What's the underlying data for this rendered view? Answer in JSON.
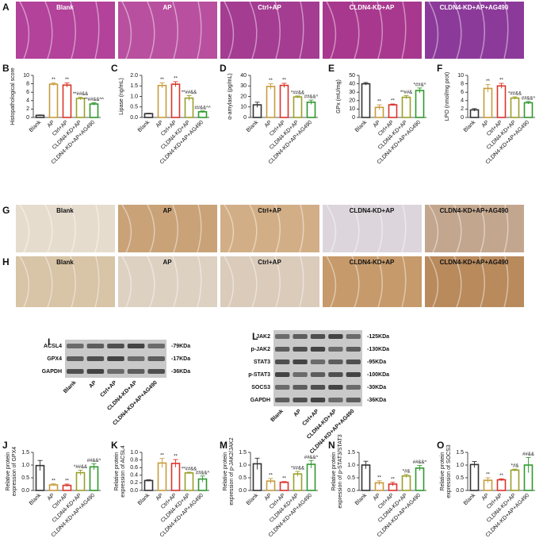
{
  "figure_A": {
    "panel": "A",
    "labels": [
      "Blank",
      "AP",
      "Ctrl+AP",
      "CLDN4-KD+AP",
      "CLDN4-KD+AP+AG490"
    ]
  },
  "figure_G": {
    "panel": "G",
    "labels": [
      "Blank",
      "AP",
      "Ctrl+AP",
      "CLDN4-KD+AP",
      "CLDN4-KD+AP+AG490"
    ]
  },
  "figure_H": {
    "panel": "H",
    "labels": [
      "Blank",
      "AP",
      "Ctrl+AP",
      "CLDN4-KD+AP",
      "CLDN4-KD+AP+AG490"
    ]
  },
  "blot_I": {
    "panel": "I",
    "proteins": [
      "ACSL4",
      "GPX4",
      "GAPDH"
    ],
    "sizes": [
      "-79KDa",
      "-17KDa",
      "-36KDa"
    ],
    "lanes": [
      "Blank",
      "AP",
      "Ctrl+AP",
      "CLDN4-KD+AP",
      "CLDN4-KD+AP+AG490"
    ]
  },
  "blot_L": {
    "panel": "L",
    "proteins": [
      "JAK2",
      "p-JAK2",
      "STAT3",
      "p-STAT3",
      "SOCS3",
      "GAPDH"
    ],
    "sizes": [
      "-125KDa",
      "-130KDa",
      "-95KDa",
      "-100KDa",
      "-30KDa",
      "-36KDa"
    ],
    "lanes": [
      "Blank",
      "AP",
      "Ctrl+AP",
      "CLDN4-KD+AP",
      "CLDN4-KD+AP+AG490"
    ]
  },
  "chart_data": [
    {
      "type": "bar",
      "panel": "B",
      "ylabel": "Histopathological score",
      "categories": [
        "Blank",
        "AP",
        "Ctrl+AP",
        "CLDN4-KD+AP",
        "CLDN4-KD+AP+AG490"
      ],
      "values": [
        0.5,
        7.9,
        7.7,
        4.5,
        3.2
      ],
      "errors": [
        0.1,
        0.3,
        0.5,
        0.3,
        0.3
      ],
      "annotations": [
        null,
        "**",
        "**",
        "**##&&",
        "**##&&^^"
      ],
      "colors": [
        "#333333",
        "#c89b3c",
        "#d9342b",
        "#9aa02a",
        "#2e9a2e"
      ],
      "ylim": [
        0,
        10
      ],
      "yticks": [
        0,
        2,
        4,
        6,
        8,
        10
      ]
    },
    {
      "type": "bar",
      "panel": "C",
      "ylabel": "Lipase (ng/mL)",
      "categories": [
        "Blank",
        "AP",
        "Ctrl+AP",
        "CLDN4-KD+AP",
        "CLDN4-KD+AP+AG490"
      ],
      "values": [
        0.18,
        1.52,
        1.58,
        0.92,
        0.27
      ],
      "errors": [
        0.02,
        0.12,
        0.12,
        0.12,
        0.04
      ],
      "annotations": [
        null,
        "**",
        "**",
        "**##&&",
        "##&&^^"
      ],
      "colors": [
        "#333333",
        "#c89b3c",
        "#d9342b",
        "#9aa02a",
        "#2e9a2e"
      ],
      "ylim": [
        0,
        2
      ],
      "yticks": [
        {
          "value": 0,
          "label": "0.0"
        },
        0.5,
        {
          "value": 1,
          "label": "1.0"
        },
        1.5,
        {
          "value": 2,
          "label": "2.0"
        }
      ]
    },
    {
      "type": "bar",
      "panel": "D",
      "ylabel": "α-amylase (pg/mL)",
      "categories": [
        "Blank",
        "AP",
        "Ctrl+AP",
        "CLDN4-KD+AP",
        "CLDN4-KD+AP+AG490"
      ],
      "values": [
        12,
        29.5,
        30.5,
        19.5,
        14.5
      ],
      "errors": [
        2.5,
        2.5,
        2,
        1,
        2
      ],
      "annotations": [
        null,
        "**",
        "**",
        "*##&&",
        "##&&^"
      ],
      "colors": [
        "#333333",
        "#c89b3c",
        "#d9342b",
        "#9aa02a",
        "#2e9a2e"
      ],
      "ylim": [
        0,
        40
      ],
      "yticks": [
        0,
        10,
        20,
        30,
        40
      ]
    },
    {
      "type": "bar",
      "panel": "E",
      "ylabel": "GPx (mU/mg)",
      "categories": [
        "Blank",
        "AP",
        "Ctrl+AP",
        "CLDN4-KD+AP",
        "CLDN4-KD+AP+AG490"
      ],
      "values": [
        40,
        12,
        15,
        24,
        32
      ],
      "errors": [
        1.5,
        3,
        1,
        2,
        3
      ],
      "annotations": [
        null,
        "**",
        "**",
        "**##&",
        "*##&^"
      ],
      "colors": [
        "#333333",
        "#c89b3c",
        "#d9342b",
        "#9aa02a",
        "#2e9a2e"
      ],
      "ylim": [
        0,
        50
      ],
      "yticks": [
        0,
        10,
        20,
        30,
        40,
        50
      ]
    },
    {
      "type": "bar",
      "panel": "F",
      "ylabel": "LPO (nmol/mg prot)",
      "categories": [
        "Blank",
        "AP",
        "Ctrl+AP",
        "CLDN4-KD+AP",
        "CLDN4-KD+AP+AG490"
      ],
      "values": [
        1.8,
        6.9,
        7.5,
        4.6,
        3.5
      ],
      "errors": [
        0.3,
        0.9,
        0.6,
        0.3,
        0.3
      ],
      "annotations": [
        null,
        "**",
        "**",
        "*##&&",
        "##&&^"
      ],
      "colors": [
        "#333333",
        "#c89b3c",
        "#d9342b",
        "#9aa02a",
        "#2e9a2e"
      ],
      "ylim": [
        0,
        10
      ],
      "yticks": [
        0,
        2,
        4,
        6,
        8,
        10
      ]
    },
    {
      "type": "bar",
      "panel": "J",
      "ylabel": [
        "Relative protein",
        "expression of GPX4"
      ],
      "categories": [
        "Blank",
        "AP",
        "Ctrl+AP",
        "CLDN4-KD+AP",
        "CLDN4-KD+AP+AG490"
      ],
      "values": [
        0.98,
        0.22,
        0.2,
        0.7,
        0.93
      ],
      "errors": [
        0.2,
        0.04,
        0.05,
        0.1,
        0.12
      ],
      "annotations": [
        null,
        "**",
        "**",
        "*##&&",
        "##&&^"
      ],
      "colors": [
        "#333333",
        "#c89b3c",
        "#d9342b",
        "#9aa02a",
        "#2e9a2e"
      ],
      "ylim": [
        0,
        1.5
      ],
      "yticks": [
        {
          "value": 0,
          "label": "0.0"
        },
        0.5,
        {
          "value": 1,
          "label": "1.0"
        },
        1.5
      ]
    },
    {
      "type": "bar",
      "panel": "K",
      "ylabel": [
        "Relative protein",
        "expression of ACSL4"
      ],
      "categories": [
        "Blank",
        "AP",
        "Ctrl+AP",
        "CLDN4-KD+AP",
        "CLDN4-KD+AP+AG490"
      ],
      "values": [
        0.26,
        0.72,
        0.71,
        0.46,
        0.3
      ],
      "errors": [
        0.02,
        0.12,
        0.1,
        0.02,
        0.08
      ],
      "annotations": [
        null,
        "**",
        "**",
        "**##&&",
        "##&&^"
      ],
      "colors": [
        "#333333",
        "#c89b3c",
        "#d9342b",
        "#9aa02a",
        "#2e9a2e"
      ],
      "ylim": [
        0,
        1
      ],
      "yticks": [
        {
          "value": 0,
          "label": "0.0"
        },
        0.2,
        0.4,
        0.6,
        0.8,
        {
          "value": 1,
          "label": "1.0"
        }
      ]
    },
    {
      "type": "bar",
      "panel": "M",
      "ylabel": [
        "Relative protein",
        "expression of p-JAK2/JAK2"
      ],
      "categories": [
        "Blank",
        "AP",
        "Ctrl+AP",
        "CLDN4-KD+AP",
        "CLDN4-KD+AP+AG490"
      ],
      "values": [
        1.05,
        0.37,
        0.32,
        0.65,
        1.03
      ],
      "errors": [
        0.22,
        0.1,
        0.03,
        0.1,
        0.15
      ],
      "annotations": [
        null,
        "**",
        "**",
        "*##&&",
        "##&&^"
      ],
      "colors": [
        "#333333",
        "#c89b3c",
        "#d9342b",
        "#9aa02a",
        "#2e9a2e"
      ],
      "ylim": [
        0,
        1.5
      ],
      "yticks": [
        {
          "value": 0,
          "label": "0.0"
        },
        0.5,
        {
          "value": 1,
          "label": "1.0"
        },
        1.5
      ]
    },
    {
      "type": "bar",
      "panel": "N",
      "ylabel": [
        "Relative protein",
        "expression of p-STAT3/STAT3"
      ],
      "categories": [
        "Blank",
        "AP",
        "Ctrl+AP",
        "CLDN4-KD+AP",
        "CLDN4-KD+AP+AG490"
      ],
      "values": [
        1.0,
        0.3,
        0.25,
        0.57,
        0.88
      ],
      "errors": [
        0.15,
        0.08,
        0.07,
        0.06,
        0.1
      ],
      "annotations": [
        null,
        "**",
        "**",
        "*#&",
        "##&&^"
      ],
      "colors": [
        "#333333",
        "#c89b3c",
        "#d9342b",
        "#9aa02a",
        "#2e9a2e"
      ],
      "ylim": [
        0,
        1.5
      ],
      "yticks": [
        {
          "value": 0,
          "label": "0.0"
        },
        0.5,
        {
          "value": 1,
          "label": "1.0"
        },
        1.5
      ]
    },
    {
      "type": "bar",
      "panel": "O",
      "ylabel": [
        "Relative protein",
        "expression of SOCS3"
      ],
      "categories": [
        "Blank",
        "AP",
        "Ctrl+AP",
        "CLDN4-KD+AP",
        "CLDN4-KD+AP+AG490"
      ],
      "values": [
        1.02,
        0.4,
        0.42,
        0.8,
        1.0
      ],
      "errors": [
        0.12,
        0.1,
        0.04,
        0.04,
        0.3
      ],
      "annotations": [
        null,
        "**",
        "**",
        "*#&",
        "##&&"
      ],
      "colors": [
        "#333333",
        "#c89b3c",
        "#d9342b",
        "#9aa02a",
        "#2e9a2e"
      ],
      "ylim": [
        0,
        1.5
      ],
      "yticks": [
        {
          "value": 0,
          "label": "0.0"
        },
        0.5,
        {
          "value": 1,
          "label": "1.0"
        },
        1.5
      ]
    }
  ]
}
